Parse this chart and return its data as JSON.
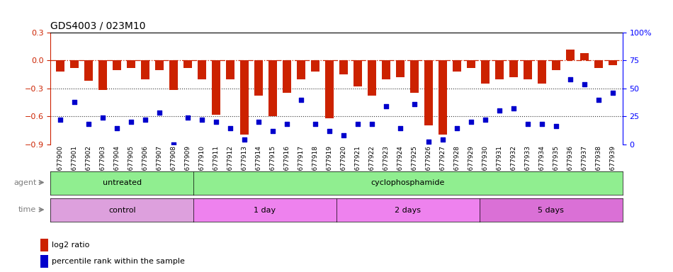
{
  "title": "GDS4003 / 023M10",
  "samples": [
    "GSM677900",
    "GSM677901",
    "GSM677902",
    "GSM677903",
    "GSM677904",
    "GSM677905",
    "GSM677906",
    "GSM677907",
    "GSM677908",
    "GSM677909",
    "GSM677910",
    "GSM677911",
    "GSM677912",
    "GSM677913",
    "GSM677914",
    "GSM677915",
    "GSM677916",
    "GSM677917",
    "GSM677918",
    "GSM677919",
    "GSM677920",
    "GSM677921",
    "GSM677922",
    "GSM677923",
    "GSM677924",
    "GSM677925",
    "GSM677926",
    "GSM677927",
    "GSM677928",
    "GSM677929",
    "GSM677930",
    "GSM677931",
    "GSM677932",
    "GSM677933",
    "GSM677934",
    "GSM677935",
    "GSM677936",
    "GSM677937",
    "GSM677938",
    "GSM677939"
  ],
  "log2_ratio": [
    -0.12,
    -0.08,
    -0.22,
    -0.32,
    -0.1,
    -0.08,
    -0.2,
    -0.1,
    -0.32,
    -0.08,
    -0.2,
    -0.58,
    -0.2,
    -0.8,
    -0.38,
    -0.6,
    -0.35,
    -0.2,
    -0.12,
    -0.62,
    -0.15,
    -0.28,
    -0.38,
    -0.2,
    -0.18,
    -0.35,
    -0.7,
    -0.8,
    -0.12,
    -0.08,
    -0.25,
    -0.2,
    -0.18,
    -0.2,
    -0.25,
    -0.1,
    0.12,
    0.08,
    -0.08,
    -0.05
  ],
  "percentile": [
    22,
    38,
    18,
    24,
    14,
    20,
    22,
    28,
    0,
    24,
    22,
    20,
    14,
    4,
    20,
    12,
    18,
    40,
    18,
    12,
    8,
    18,
    18,
    34,
    14,
    36,
    2,
    4,
    14,
    20,
    22,
    30,
    32,
    18,
    18,
    16,
    58,
    54,
    40,
    46
  ],
  "agent_groups": [
    {
      "label": "untreated",
      "start": 0,
      "end": 9,
      "color": "#90EE90"
    },
    {
      "label": "cyclophosphamide",
      "start": 10,
      "end": 39,
      "color": "#90EE90"
    }
  ],
  "time_groups": [
    {
      "label": "control",
      "start": 0,
      "end": 9,
      "color": "#DDA0DD"
    },
    {
      "label": "1 day",
      "start": 10,
      "end": 19,
      "color": "#EE82EE"
    },
    {
      "label": "2 days",
      "start": 20,
      "end": 29,
      "color": "#EE82EE"
    },
    {
      "label": "5 days",
      "start": 30,
      "end": 39,
      "color": "#DA70D6"
    }
  ],
  "ylim_left": [
    -0.9,
    0.3
  ],
  "ylim_right": [
    0,
    100
  ],
  "bar_color": "#CC2200",
  "dot_color": "#0000CC",
  "zero_line_color": "#CC2200",
  "dotted_line_color": "#333333",
  "bg_color": "#FFFFFF",
  "tick_label_fontsize": 6.5,
  "title_fontsize": 10,
  "legend_fontsize": 8,
  "ann_label_fontsize": 8,
  "ann_content_fontsize": 8
}
